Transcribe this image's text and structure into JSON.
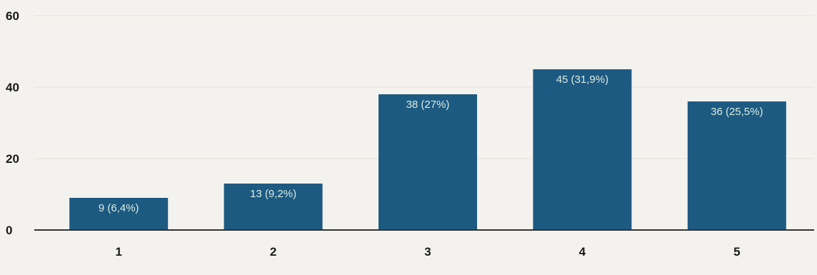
{
  "chart_data": {
    "type": "bar",
    "categories": [
      "1",
      "2",
      "3",
      "4",
      "5"
    ],
    "values": [
      9,
      13,
      38,
      45,
      36
    ],
    "data_labels": [
      "9 (6,4%)",
      "13 (9,2%)",
      "38 (27%)",
      "45 (31,9%)",
      "36 (25,5%)"
    ],
    "y_ticks": [
      "0",
      "20",
      "40",
      "60"
    ],
    "ylim": [
      0,
      60
    ],
    "grid": true,
    "title": "",
    "xlabel": "",
    "ylabel": ""
  },
  "colors": {
    "bar": "#1d5a82",
    "background": "#f3f2ee",
    "grid": "#e4e2dc",
    "axis": "#333333"
  }
}
